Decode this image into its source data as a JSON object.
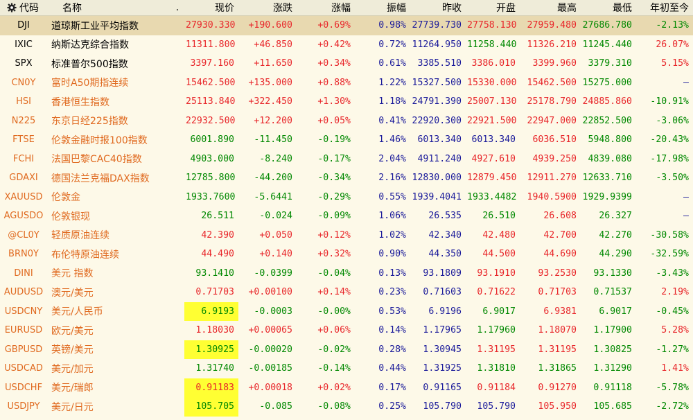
{
  "colors": {
    "up": "#e8262a",
    "down": "#008800",
    "neutral_blue": "#1a1a9a",
    "highlight": "#ffff33",
    "selected_row": "#e8d9b0",
    "code_orange": "#e06a20"
  },
  "header": {
    "settings_icon": "gear-icon",
    "code": "代码",
    "name": "名称",
    "dot": ".",
    "price": "现价",
    "change": "涨跌",
    "change_pct": "涨幅",
    "amplitude": "振幅",
    "prev_close": "昨收",
    "open": "开盘",
    "high": "最高",
    "low": "最低",
    "ytd": "年初至今"
  },
  "rows": [
    {
      "code": "DJI",
      "name": "道琼斯工业平均指数",
      "price": "27930.330",
      "change": "+190.600",
      "pct": "+0.69%",
      "amp": "0.98%",
      "prev": "27739.730",
      "open": "27758.130",
      "high": "27959.480",
      "low": "27686.780",
      "ytd": "-2.13%"
    },
    {
      "code": "IXIC",
      "name": "纳斯达克综合指数",
      "price": "11311.800",
      "change": "+46.850",
      "pct": "+0.42%",
      "amp": "0.72%",
      "prev": "11264.950",
      "open": "11258.440",
      "high": "11326.210",
      "low": "11245.440",
      "ytd": "26.07%"
    },
    {
      "code": "SPX",
      "name": "标准普尔500指数",
      "price": "3397.160",
      "change": "+11.650",
      "pct": "+0.34%",
      "amp": "0.61%",
      "prev": "3385.510",
      "open": "3386.010",
      "high": "3399.960",
      "low": "3379.310",
      "ytd": "5.15%"
    },
    {
      "code": "CN0Y",
      "name": "富时A50期指连续",
      "price": "15462.500",
      "change": "+135.000",
      "pct": "+0.88%",
      "amp": "1.22%",
      "prev": "15327.500",
      "open": "15330.000",
      "high": "15462.500",
      "low": "15275.000",
      "ytd": "–"
    },
    {
      "code": "HSI",
      "name": "香港恒生指数",
      "price": "25113.840",
      "change": "+322.450",
      "pct": "+1.30%",
      "amp": "1.18%",
      "prev": "24791.390",
      "open": "25007.130",
      "high": "25178.790",
      "low": "24885.860",
      "ytd": "-10.91%"
    },
    {
      "code": "N225",
      "name": "东京日经225指数",
      "price": "22932.500",
      "change": "+12.200",
      "pct": "+0.05%",
      "amp": "0.41%",
      "prev": "22920.300",
      "open": "22921.500",
      "high": "22947.000",
      "low": "22852.500",
      "ytd": "-3.06%"
    },
    {
      "code": "FTSE",
      "name": "伦敦金融时报100指数",
      "price": "6001.890",
      "change": "-11.450",
      "pct": "-0.19%",
      "amp": "1.46%",
      "prev": "6013.340",
      "open": "6013.340",
      "high": "6036.510",
      "low": "5948.800",
      "ytd": "-20.43%"
    },
    {
      "code": "FCHI",
      "name": "法国巴黎CAC40指数",
      "price": "4903.000",
      "change": "-8.240",
      "pct": "-0.17%",
      "amp": "2.04%",
      "prev": "4911.240",
      "open": "4927.610",
      "high": "4939.250",
      "low": "4839.080",
      "ytd": "-17.98%"
    },
    {
      "code": "GDAXI",
      "name": "德国法兰克福DAX指数",
      "price": "12785.800",
      "change": "-44.200",
      "pct": "-0.34%",
      "amp": "2.16%",
      "prev": "12830.000",
      "open": "12879.450",
      "high": "12911.270",
      "low": "12633.710",
      "ytd": "-3.50%"
    },
    {
      "code": "XAUUSD",
      "name": "伦敦金",
      "price": "1933.7600",
      "change": "-5.6441",
      "pct": "-0.29%",
      "amp": "0.55%",
      "prev": "1939.4041",
      "open": "1933.4482",
      "high": "1940.5900",
      "low": "1929.9399",
      "ytd": "–"
    },
    {
      "code": "AGUSDO",
      "name": "伦敦银现",
      "price": "26.511",
      "change": "-0.024",
      "pct": "-0.09%",
      "amp": "1.06%",
      "prev": "26.535",
      "open": "26.510",
      "high": "26.608",
      "low": "26.327",
      "ytd": "–"
    },
    {
      "code": "@CL0Y",
      "name": "轻质原油连续",
      "price": "42.390",
      "change": "+0.050",
      "pct": "+0.12%",
      "amp": "1.02%",
      "prev": "42.340",
      "open": "42.480",
      "high": "42.700",
      "low": "42.270",
      "ytd": "-30.58%"
    },
    {
      "code": "BRN0Y",
      "name": "布伦特原油连续",
      "price": "44.490",
      "change": "+0.140",
      "pct": "+0.32%",
      "amp": "0.90%",
      "prev": "44.350",
      "open": "44.500",
      "high": "44.690",
      "low": "44.290",
      "ytd": "-32.59%"
    },
    {
      "code": "DINI",
      "name": "美元 指数",
      "price": "93.1410",
      "change": "-0.0399",
      "pct": "-0.04%",
      "amp": "0.13%",
      "prev": "93.1809",
      "open": "93.1910",
      "high": "93.2530",
      "low": "93.1330",
      "ytd": "-3.43%"
    },
    {
      "code": "AUDUSD",
      "name": "澳元/美元",
      "price": "0.71703",
      "change": "+0.00100",
      "pct": "+0.14%",
      "amp": "0.23%",
      "prev": "0.71603",
      "open": "0.71622",
      "high": "0.71703",
      "low": "0.71537",
      "ytd": "2.19%"
    },
    {
      "code": "USDCNY",
      "name": "美元/人民币",
      "price": "6.9193",
      "change": "-0.0003",
      "pct": "-0.00%",
      "amp": "0.53%",
      "prev": "6.9196",
      "open": "6.9017",
      "high": "6.9381",
      "low": "6.9017",
      "ytd": "-0.45%"
    },
    {
      "code": "EURUSD",
      "name": "欧元/美元",
      "price": "1.18030",
      "change": "+0.00065",
      "pct": "+0.06%",
      "amp": "0.14%",
      "prev": "1.17965",
      "open": "1.17960",
      "high": "1.18070",
      "low": "1.17900",
      "ytd": "5.28%"
    },
    {
      "code": "GBPUSD",
      "name": "英镑/美元",
      "price": "1.30925",
      "change": "-0.00020",
      "pct": "-0.02%",
      "amp": "0.28%",
      "prev": "1.30945",
      "open": "1.31195",
      "high": "1.31195",
      "low": "1.30825",
      "ytd": "-1.27%"
    },
    {
      "code": "USDCAD",
      "name": "美元/加元",
      "price": "1.31740",
      "change": "-0.00185",
      "pct": "-0.14%",
      "amp": "0.44%",
      "prev": "1.31925",
      "open": "1.31810",
      "high": "1.31865",
      "low": "1.31290",
      "ytd": "1.41%"
    },
    {
      "code": "USDCHF",
      "name": "美元/瑞郎",
      "price": "0.91183",
      "change": "+0.00018",
      "pct": "+0.02%",
      "amp": "0.17%",
      "prev": "0.91165",
      "open": "0.91184",
      "high": "0.91270",
      "low": "0.91118",
      "ytd": "-5.78%"
    },
    {
      "code": "USDJPY",
      "name": "美元/日元",
      "price": "105.705",
      "change": "-0.085",
      "pct": "-0.08%",
      "amp": "0.25%",
      "prev": "105.790",
      "open": "105.790",
      "high": "105.950",
      "low": "105.685",
      "ytd": "-2.72%"
    }
  ]
}
